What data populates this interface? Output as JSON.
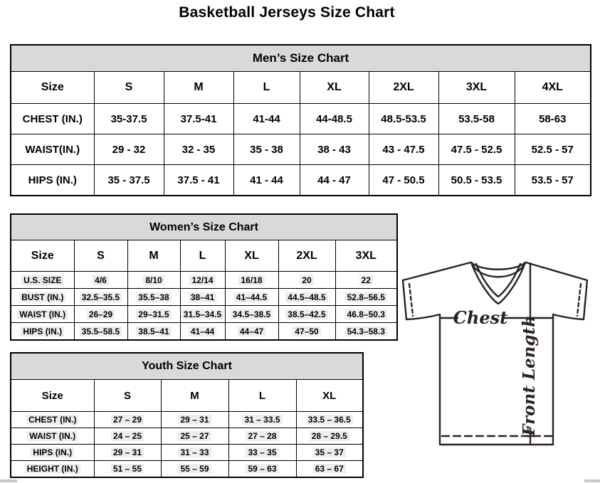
{
  "page": {
    "title": "Basketball Jerseys Size Chart"
  },
  "mens": {
    "section_title": "Men’s Size Chart",
    "columns": [
      "Size",
      "S",
      "M",
      "L",
      "XL",
      "2XL",
      "3XL",
      "4XL"
    ],
    "rows": [
      {
        "label": "CHEST (IN.)",
        "values": [
          "35-37.5",
          "37.5-41",
          "41-44",
          "44-48.5",
          "48.5-53.5",
          "53.5-58",
          "58-63"
        ]
      },
      {
        "label": "WAIST(IN.)",
        "values": [
          "29 - 32",
          "32 - 35",
          "35 - 38",
          "38 - 43",
          "43 - 47.5",
          "47.5 - 52.5",
          "52.5 - 57"
        ]
      },
      {
        "label": "HIPS (IN.)",
        "values": [
          "35 - 37.5",
          "37.5 - 41",
          "41 - 44",
          "44 - 47",
          "47 - 50.5",
          "50.5 - 53.5",
          "53.5 - 57"
        ]
      }
    ]
  },
  "womens": {
    "section_title": "Women’s Size Chart",
    "columns": [
      "Size",
      "S",
      "M",
      "L",
      "XL",
      "2XL",
      "3XL"
    ],
    "rows": [
      {
        "label": "U.S. SIZE",
        "values": [
          "4/6",
          "8/10",
          "12/14",
          "16/18",
          "20",
          "22"
        ]
      },
      {
        "label": "BUST (IN.)",
        "values": [
          "32.5–35.5",
          "35.5–38",
          "38–41",
          "41–44.5",
          "44.5–48.5",
          "52.8–56.5"
        ]
      },
      {
        "label": "WAIST (IN.)",
        "values": [
          "26–29",
          "29–31.5",
          "31.5–34.5",
          "34.5–38.5",
          "38.5–42.5",
          "46.8–50.3"
        ]
      },
      {
        "label": "HIPS (IN.)",
        "values": [
          "35.5–58.5",
          "38.5–41",
          "41–44",
          "44–47",
          "47–50",
          "54.3–58.3"
        ]
      }
    ]
  },
  "youth": {
    "section_title": "Youth Size Chart",
    "columns": [
      "Size",
      "S",
      "M",
      "L",
      "XL"
    ],
    "rows": [
      {
        "label": "CHEST (IN.)",
        "values": [
          "27 – 29",
          "29 – 31",
          "31 – 33.5",
          "33.5 – 36.5"
        ]
      },
      {
        "label": "WAIST (IN.)",
        "values": [
          "24 – 25",
          "25 – 27",
          "27 – 28",
          "28 – 29.5"
        ]
      },
      {
        "label": "HIPS (IN.)",
        "values": [
          "29 – 31",
          "31 – 33",
          "33 – 35",
          "35 – 37"
        ]
      },
      {
        "label": "HEIGHT (IN.)",
        "values": [
          "51 – 55",
          "55 – 59",
          "59 – 63",
          "63 – 67"
        ]
      }
    ]
  },
  "diagram": {
    "chest_label": "Chest",
    "front_length_label": "Front Length"
  },
  "colors": {
    "section_header_bg": "#d9d9d9",
    "table_border": "#000000",
    "diagram_stroke": "#2b2320",
    "value_highlight": "#ededed"
  }
}
